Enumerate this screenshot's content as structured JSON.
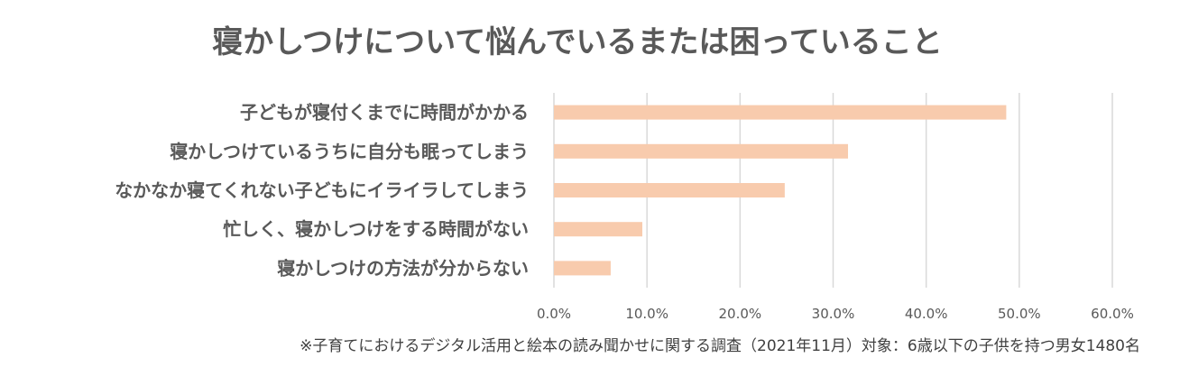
{
  "chart_data": {
    "type": "bar",
    "orientation": "horizontal",
    "title": "寝かしつけについて悩んでいるまたは困っていること",
    "categories": [
      "子どもが寝付くまでに時間がかかる",
      "寝かしつけているうちに自分も眠ってしまう",
      "なかなか寝てくれない子どもにイライラしてしまう",
      "忙しく、寝かしつけをする時間がない",
      "寝かしつけの方法が分からない"
    ],
    "values": [
      48.6,
      31.6,
      24.8,
      9.5,
      6.1
    ],
    "xlim": [
      0,
      60
    ],
    "ticks": [
      "0.0%",
      "10.0%",
      "20.0%",
      "30.0%",
      "40.0%",
      "50.0%",
      "60.0%"
    ],
    "tick_values": [
      0,
      10,
      20,
      30,
      40,
      50,
      60
    ],
    "grid": true,
    "legend": "none",
    "bar_color": "#f8cbad",
    "note": "※子育てにおけるデジタル活用と絵本の読み聞かせに関する調査（2021年11月）対象：6歳以下の子供を持つ男女1480名"
  }
}
